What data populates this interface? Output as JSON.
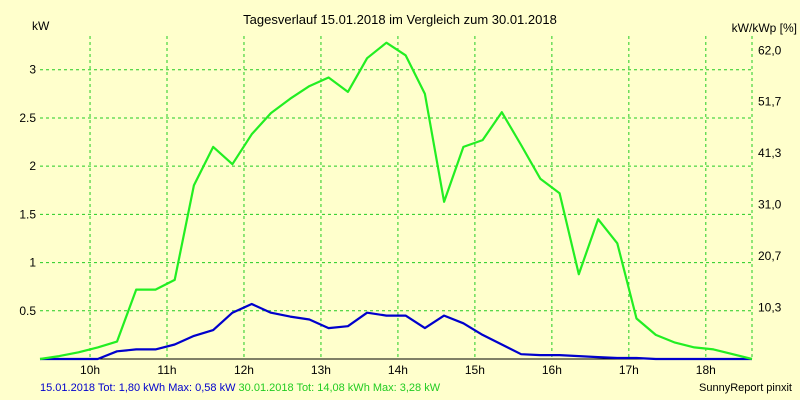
{
  "colors": {
    "background": "#ffffcc",
    "grid": "#22cc22",
    "series_a": "#0000cc",
    "series_b": "#22ee22",
    "axis": "#000000"
  },
  "chart_data": {
    "type": "line",
    "title": "Tagesverlauf 15.01.2018 im Vergleich zum 30.01.2018",
    "ylabel_left": "kW",
    "ylabel_right": "kW/kWp [%]",
    "x_tick_labels": [
      "10h",
      "11h",
      "12h",
      "13h",
      "14h",
      "15h",
      "16h",
      "17h",
      "18h"
    ],
    "x_ticks": [
      10,
      11,
      12,
      13,
      14,
      15,
      16,
      17,
      18
    ],
    "xlim": [
      9.35,
      18.6
    ],
    "ylim": [
      0,
      3.35
    ],
    "y_ticks": [
      0.5,
      1,
      1.5,
      2,
      2.5,
      3
    ],
    "y_tick_labels": [
      "0.5",
      "1",
      "1.5",
      "2",
      "2.5",
      "3"
    ],
    "y2_ticks": [
      0.535,
      1.07,
      1.6,
      2.135,
      2.67,
      3.2
    ],
    "y2_tick_labels": [
      "10,3",
      "20,7",
      "31,0",
      "41,3",
      "51,7",
      "62,0"
    ],
    "grid": true,
    "series": [
      {
        "name": "15.01.2018",
        "color": "#0000cc",
        "x": [
          9.35,
          9.6,
          9.85,
          10.1,
          10.35,
          10.6,
          10.85,
          11.1,
          11.35,
          11.6,
          11.85,
          12.1,
          12.35,
          12.6,
          12.85,
          13.1,
          13.35,
          13.6,
          13.85,
          14.1,
          14.35,
          14.6,
          14.85,
          15.1,
          15.35,
          15.6,
          15.85,
          16.1,
          16.35,
          16.6,
          16.85,
          17.1,
          17.35,
          17.6,
          17.85,
          18.1,
          18.35,
          18.6
        ],
        "y": [
          0,
          0,
          0,
          0,
          0.08,
          0.1,
          0.1,
          0.15,
          0.24,
          0.3,
          0.48,
          0.57,
          0.48,
          0.44,
          0.41,
          0.32,
          0.34,
          0.48,
          0.45,
          0.45,
          0.32,
          0.45,
          0.37,
          0.25,
          0.15,
          0.05,
          0.04,
          0.04,
          0.03,
          0.02,
          0.01,
          0.01,
          0,
          0,
          0,
          0,
          0,
          0
        ]
      },
      {
        "name": "30.01.2018",
        "color": "#22ee22",
        "x": [
          9.35,
          9.6,
          9.85,
          10.1,
          10.35,
          10.6,
          10.85,
          11.1,
          11.35,
          11.6,
          11.85,
          12.1,
          12.35,
          12.6,
          12.85,
          13.1,
          13.35,
          13.6,
          13.85,
          14.1,
          14.35,
          14.6,
          14.85,
          15.1,
          15.35,
          15.6,
          15.85,
          16.1,
          16.35,
          16.6,
          16.85,
          17.1,
          17.35,
          17.6,
          17.85,
          18.1,
          18.35,
          18.6
        ],
        "y": [
          0,
          0.03,
          0.07,
          0.12,
          0.18,
          0.72,
          0.72,
          0.82,
          1.8,
          2.2,
          2.02,
          2.33,
          2.55,
          2.7,
          2.83,
          2.92,
          2.77,
          3.12,
          3.28,
          3.15,
          2.75,
          1.63,
          2.2,
          2.27,
          2.56,
          2.22,
          1.87,
          1.72,
          0.88,
          1.45,
          1.2,
          0.42,
          0.25,
          0.17,
          0.12,
          0.1,
          0.05,
          0
        ]
      }
    ]
  },
  "footer": {
    "series_a_text": "15.01.2018 Tot: 1,80 kWh Max: 0,58 kW",
    "series_b_text": "30.01.2018 Tot: 14,08 kWh Max: 3,28 kW",
    "credit": "SunnyReport pinxit"
  }
}
